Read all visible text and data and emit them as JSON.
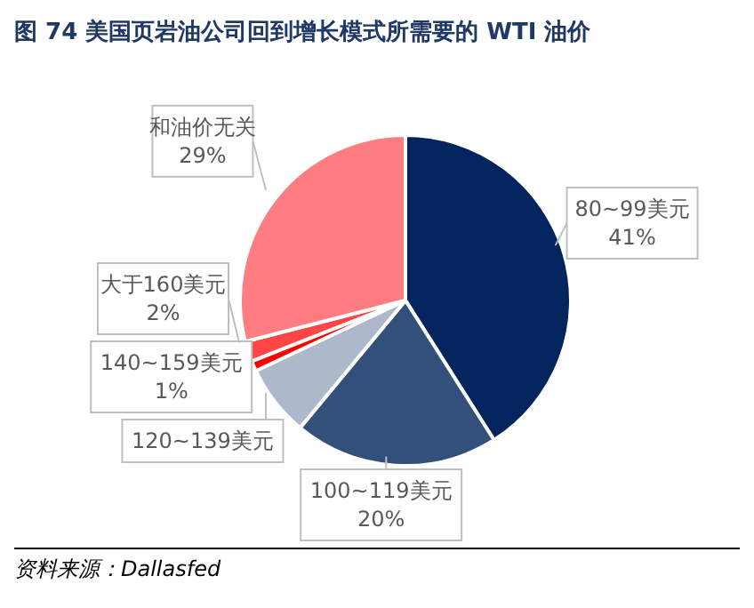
{
  "chart_data": {
    "type": "pie",
    "title": "图 74  美国页岩油公司回到增长模式所需要的 WTI 油价",
    "categories": [
      "80~99美元",
      "100~119美元",
      "120~139美元",
      "140~159美元",
      "大于160美元",
      "和油价无关"
    ],
    "values": [
      41,
      20,
      7,
      1,
      2,
      29
    ],
    "value_labels": [
      "41%",
      "20%",
      null,
      "1%",
      "2%",
      "29%"
    ],
    "colors": [
      "#03245c",
      "#33507a",
      "#adb9ca",
      "#ff0000",
      "#ff4545",
      "#ff7c80"
    ],
    "legend": false,
    "annotations": [
      "资料来源：Dallasfed"
    ]
  }
}
